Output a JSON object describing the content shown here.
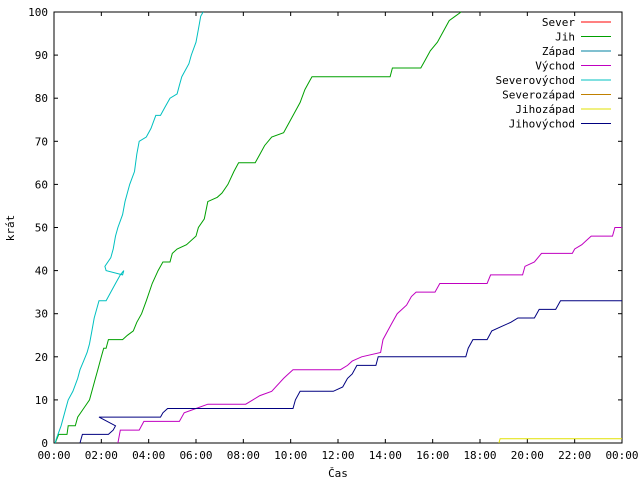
{
  "chart_data": {
    "type": "line",
    "xlabel": "Čas",
    "ylabel": "krát",
    "xlim": [
      0,
      24
    ],
    "ylim": [
      0,
      100
    ],
    "x_unit": "hours",
    "x_ticks": [
      {
        "value": 0,
        "label": "00:00"
      },
      {
        "value": 2,
        "label": "02:00"
      },
      {
        "value": 4,
        "label": "04:00"
      },
      {
        "value": 6,
        "label": "06:00"
      },
      {
        "value": 8,
        "label": "08:00"
      },
      {
        "value": 10,
        "label": "10:00"
      },
      {
        "value": 12,
        "label": "12:00"
      },
      {
        "value": 14,
        "label": "14:00"
      },
      {
        "value": 16,
        "label": "16:00"
      },
      {
        "value": 18,
        "label": "18:00"
      },
      {
        "value": 20,
        "label": "20:00"
      },
      {
        "value": 22,
        "label": "22:00"
      },
      {
        "value": 24,
        "label": "00:00"
      }
    ],
    "y_ticks": [
      0,
      10,
      20,
      30,
      40,
      50,
      60,
      70,
      80,
      90,
      100
    ],
    "grid": false,
    "legend_position": "top-right",
    "series": [
      {
        "name": "Sever",
        "color": "#ff0000",
        "points": []
      },
      {
        "name": "Jih",
        "color": "#00a000",
        "points": [
          [
            0.05,
            0
          ],
          [
            0.2,
            2
          ],
          [
            0.55,
            2
          ],
          [
            0.6,
            4
          ],
          [
            0.9,
            4
          ],
          [
            1.0,
            6
          ],
          [
            1.25,
            8
          ],
          [
            1.5,
            10
          ],
          [
            1.7,
            14
          ],
          [
            1.85,
            17
          ],
          [
            2.0,
            20
          ],
          [
            2.1,
            22
          ],
          [
            2.2,
            22
          ],
          [
            2.3,
            24
          ],
          [
            2.9,
            24
          ],
          [
            3.1,
            25
          ],
          [
            3.35,
            26
          ],
          [
            3.5,
            28
          ],
          [
            3.7,
            30
          ],
          [
            3.9,
            33
          ],
          [
            4.15,
            37
          ],
          [
            4.4,
            40
          ],
          [
            4.6,
            42
          ],
          [
            4.9,
            42
          ],
          [
            5.0,
            44
          ],
          [
            5.2,
            45
          ],
          [
            5.6,
            46
          ],
          [
            6.0,
            48
          ],
          [
            6.1,
            50
          ],
          [
            6.35,
            52
          ],
          [
            6.5,
            56
          ],
          [
            6.9,
            57
          ],
          [
            7.1,
            58
          ],
          [
            7.35,
            60
          ],
          [
            7.6,
            63
          ],
          [
            7.8,
            65
          ],
          [
            8.5,
            65
          ],
          [
            8.7,
            67
          ],
          [
            8.9,
            69
          ],
          [
            9.2,
            71
          ],
          [
            9.7,
            72
          ],
          [
            9.9,
            74
          ],
          [
            10.2,
            77
          ],
          [
            10.4,
            79
          ],
          [
            10.6,
            82
          ],
          [
            10.8,
            84
          ],
          [
            10.9,
            85
          ],
          [
            14.2,
            85
          ],
          [
            14.3,
            87
          ],
          [
            15.5,
            87
          ],
          [
            15.7,
            89
          ],
          [
            15.9,
            91
          ],
          [
            16.2,
            93
          ],
          [
            16.4,
            95
          ],
          [
            16.7,
            98
          ],
          [
            16.95,
            99
          ],
          [
            17.2,
            100
          ]
        ]
      },
      {
        "name": "Západ",
        "color": "#0080a0",
        "points": []
      },
      {
        "name": "Východ",
        "color": "#c000c0",
        "points": [
          [
            2.7,
            0
          ],
          [
            2.8,
            3
          ],
          [
            3.6,
            3
          ],
          [
            3.8,
            5
          ],
          [
            5.3,
            5
          ],
          [
            5.5,
            7
          ],
          [
            6.0,
            8
          ],
          [
            6.5,
            9
          ],
          [
            8.1,
            9
          ],
          [
            8.4,
            10
          ],
          [
            8.7,
            11
          ],
          [
            9.2,
            12
          ],
          [
            9.7,
            15
          ],
          [
            9.9,
            16
          ],
          [
            10.1,
            17
          ],
          [
            12.1,
            17
          ],
          [
            12.4,
            18
          ],
          [
            12.6,
            19
          ],
          [
            13.0,
            20
          ],
          [
            13.8,
            21
          ],
          [
            13.9,
            24
          ],
          [
            14.1,
            26
          ],
          [
            14.3,
            28
          ],
          [
            14.5,
            30
          ],
          [
            14.9,
            32
          ],
          [
            15.1,
            34
          ],
          [
            15.3,
            35
          ],
          [
            16.1,
            35
          ],
          [
            16.3,
            37
          ],
          [
            18.3,
            37
          ],
          [
            18.45,
            39
          ],
          [
            19.8,
            39
          ],
          [
            19.9,
            41
          ],
          [
            20.3,
            42
          ],
          [
            20.6,
            44
          ],
          [
            21.9,
            44
          ],
          [
            22.0,
            45
          ],
          [
            22.3,
            46
          ],
          [
            22.5,
            47
          ],
          [
            22.7,
            48
          ],
          [
            23.6,
            48
          ],
          [
            23.7,
            50
          ],
          [
            24,
            50
          ]
        ]
      },
      {
        "name": "Severovýchod",
        "color": "#00c0c0",
        "points": [
          [
            0.05,
            0
          ],
          [
            0.1,
            1
          ],
          [
            0.3,
            4
          ],
          [
            0.5,
            8
          ],
          [
            0.6,
            10
          ],
          [
            0.8,
            12
          ],
          [
            1.0,
            15
          ],
          [
            1.1,
            17
          ],
          [
            1.25,
            19
          ],
          [
            1.4,
            21
          ],
          [
            1.5,
            23
          ],
          [
            1.6,
            26
          ],
          [
            1.7,
            29
          ],
          [
            1.8,
            31
          ],
          [
            1.9,
            33
          ],
          [
            2.2,
            33
          ],
          [
            2.4,
            35
          ],
          [
            2.6,
            37
          ],
          [
            2.8,
            39
          ],
          [
            2.95,
            40
          ],
          [
            2.9,
            39
          ],
          [
            2.2,
            40
          ],
          [
            2.15,
            41
          ],
          [
            2.4,
            43
          ],
          [
            2.5,
            45
          ],
          [
            2.6,
            48
          ],
          [
            2.7,
            50
          ],
          [
            2.9,
            53
          ],
          [
            3.0,
            56
          ],
          [
            3.2,
            60
          ],
          [
            3.4,
            63
          ],
          [
            3.5,
            67
          ],
          [
            3.6,
            70
          ],
          [
            3.9,
            71
          ],
          [
            4.1,
            73
          ],
          [
            4.3,
            76
          ],
          [
            4.5,
            76
          ],
          [
            4.7,
            78
          ],
          [
            4.9,
            80
          ],
          [
            5.2,
            81
          ],
          [
            5.3,
            83
          ],
          [
            5.4,
            85
          ],
          [
            5.7,
            88
          ],
          [
            5.8,
            90
          ],
          [
            6.0,
            93
          ],
          [
            6.1,
            96
          ],
          [
            6.2,
            99
          ],
          [
            6.3,
            100
          ]
        ]
      },
      {
        "name": "Severozápad",
        "color": "#c08000",
        "points": []
      },
      {
        "name": "Jihozápad",
        "color": "#e0e000",
        "points": [
          [
            18.8,
            0
          ],
          [
            18.85,
            1
          ],
          [
            24,
            1
          ]
        ]
      },
      {
        "name": "Jihovýchod",
        "color": "#000080",
        "points": [
          [
            1.1,
            0
          ],
          [
            1.2,
            2
          ],
          [
            2.3,
            2
          ],
          [
            2.5,
            3
          ],
          [
            2.6,
            4
          ],
          [
            1.9,
            6
          ],
          [
            4.5,
            6
          ],
          [
            4.6,
            7
          ],
          [
            4.8,
            8
          ],
          [
            8.2,
            8
          ],
          [
            9.3,
            8
          ],
          [
            10.1,
            8
          ],
          [
            10.2,
            10
          ],
          [
            10.4,
            12
          ],
          [
            11.8,
            12
          ],
          [
            12.2,
            13
          ],
          [
            12.4,
            15
          ],
          [
            12.6,
            16
          ],
          [
            12.8,
            18
          ],
          [
            13.6,
            18
          ],
          [
            13.7,
            20
          ],
          [
            17.4,
            20
          ],
          [
            17.5,
            22
          ],
          [
            17.7,
            24
          ],
          [
            18.3,
            24
          ],
          [
            18.5,
            26
          ],
          [
            18.9,
            27
          ],
          [
            19.3,
            28
          ],
          [
            19.6,
            29
          ],
          [
            20.3,
            29
          ],
          [
            20.5,
            31
          ],
          [
            21.2,
            31
          ],
          [
            21.4,
            33
          ],
          [
            24,
            33
          ]
        ]
      }
    ]
  }
}
